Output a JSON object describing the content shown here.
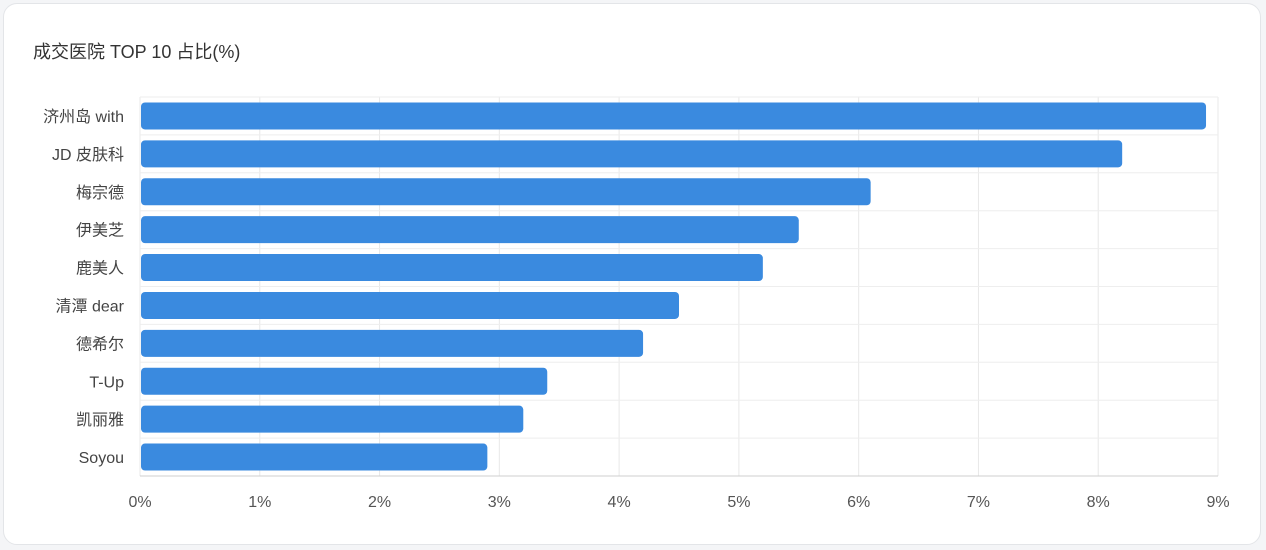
{
  "chart_data": {
    "type": "bar",
    "orientation": "horizontal",
    "title": "成交医院 TOP 10 占比(%)",
    "categories": [
      "济州岛 with",
      "JD 皮肤科",
      "梅宗德",
      "伊美芝",
      "鹿美人",
      "清潭 dear",
      "德希尔",
      "T-Up",
      "凯丽雅",
      "Soyou"
    ],
    "values": [
      8.9,
      8.2,
      6.1,
      5.5,
      5.2,
      4.5,
      4.2,
      3.4,
      3.2,
      2.9
    ],
    "xlim": [
      0,
      9
    ],
    "xticks": [
      "0%",
      "1%",
      "2%",
      "3%",
      "4%",
      "5%",
      "6%",
      "7%",
      "8%",
      "9%"
    ],
    "xlabel": "",
    "ylabel": "",
    "grid": true,
    "bar_color": "#3a8adf"
  }
}
